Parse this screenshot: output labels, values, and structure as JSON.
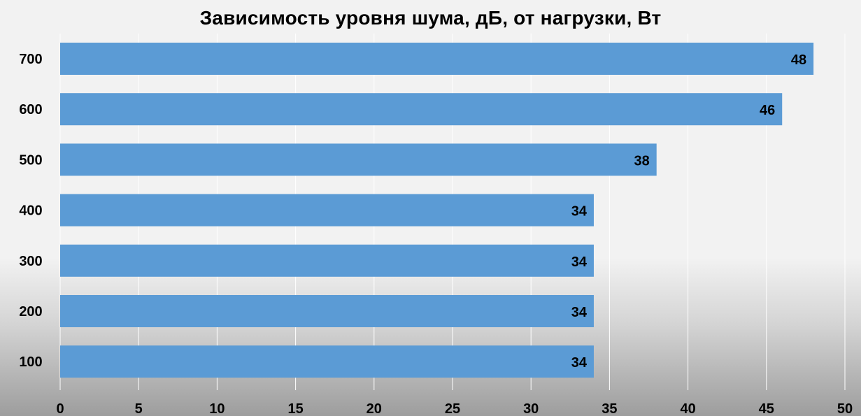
{
  "chart_data": {
    "type": "bar",
    "orientation": "horizontal",
    "title": "Зависимость уровня шума, дБ, от нагрузки, Вт",
    "xlabel": "",
    "ylabel": "",
    "categories": [
      "700",
      "600",
      "500",
      "400",
      "300",
      "200",
      "100"
    ],
    "values": [
      48,
      46,
      38,
      34,
      34,
      34,
      34
    ],
    "xlim": [
      0,
      50
    ],
    "x_ticks": [
      "0",
      "5",
      "10",
      "15",
      "20",
      "25",
      "30",
      "35",
      "40",
      "45",
      "50"
    ],
    "grid": "vertical",
    "legend": "none",
    "data_labels": true,
    "colors": {
      "bar": "#5b9bd5",
      "grid": "#ffffff",
      "text": "#000000"
    }
  }
}
